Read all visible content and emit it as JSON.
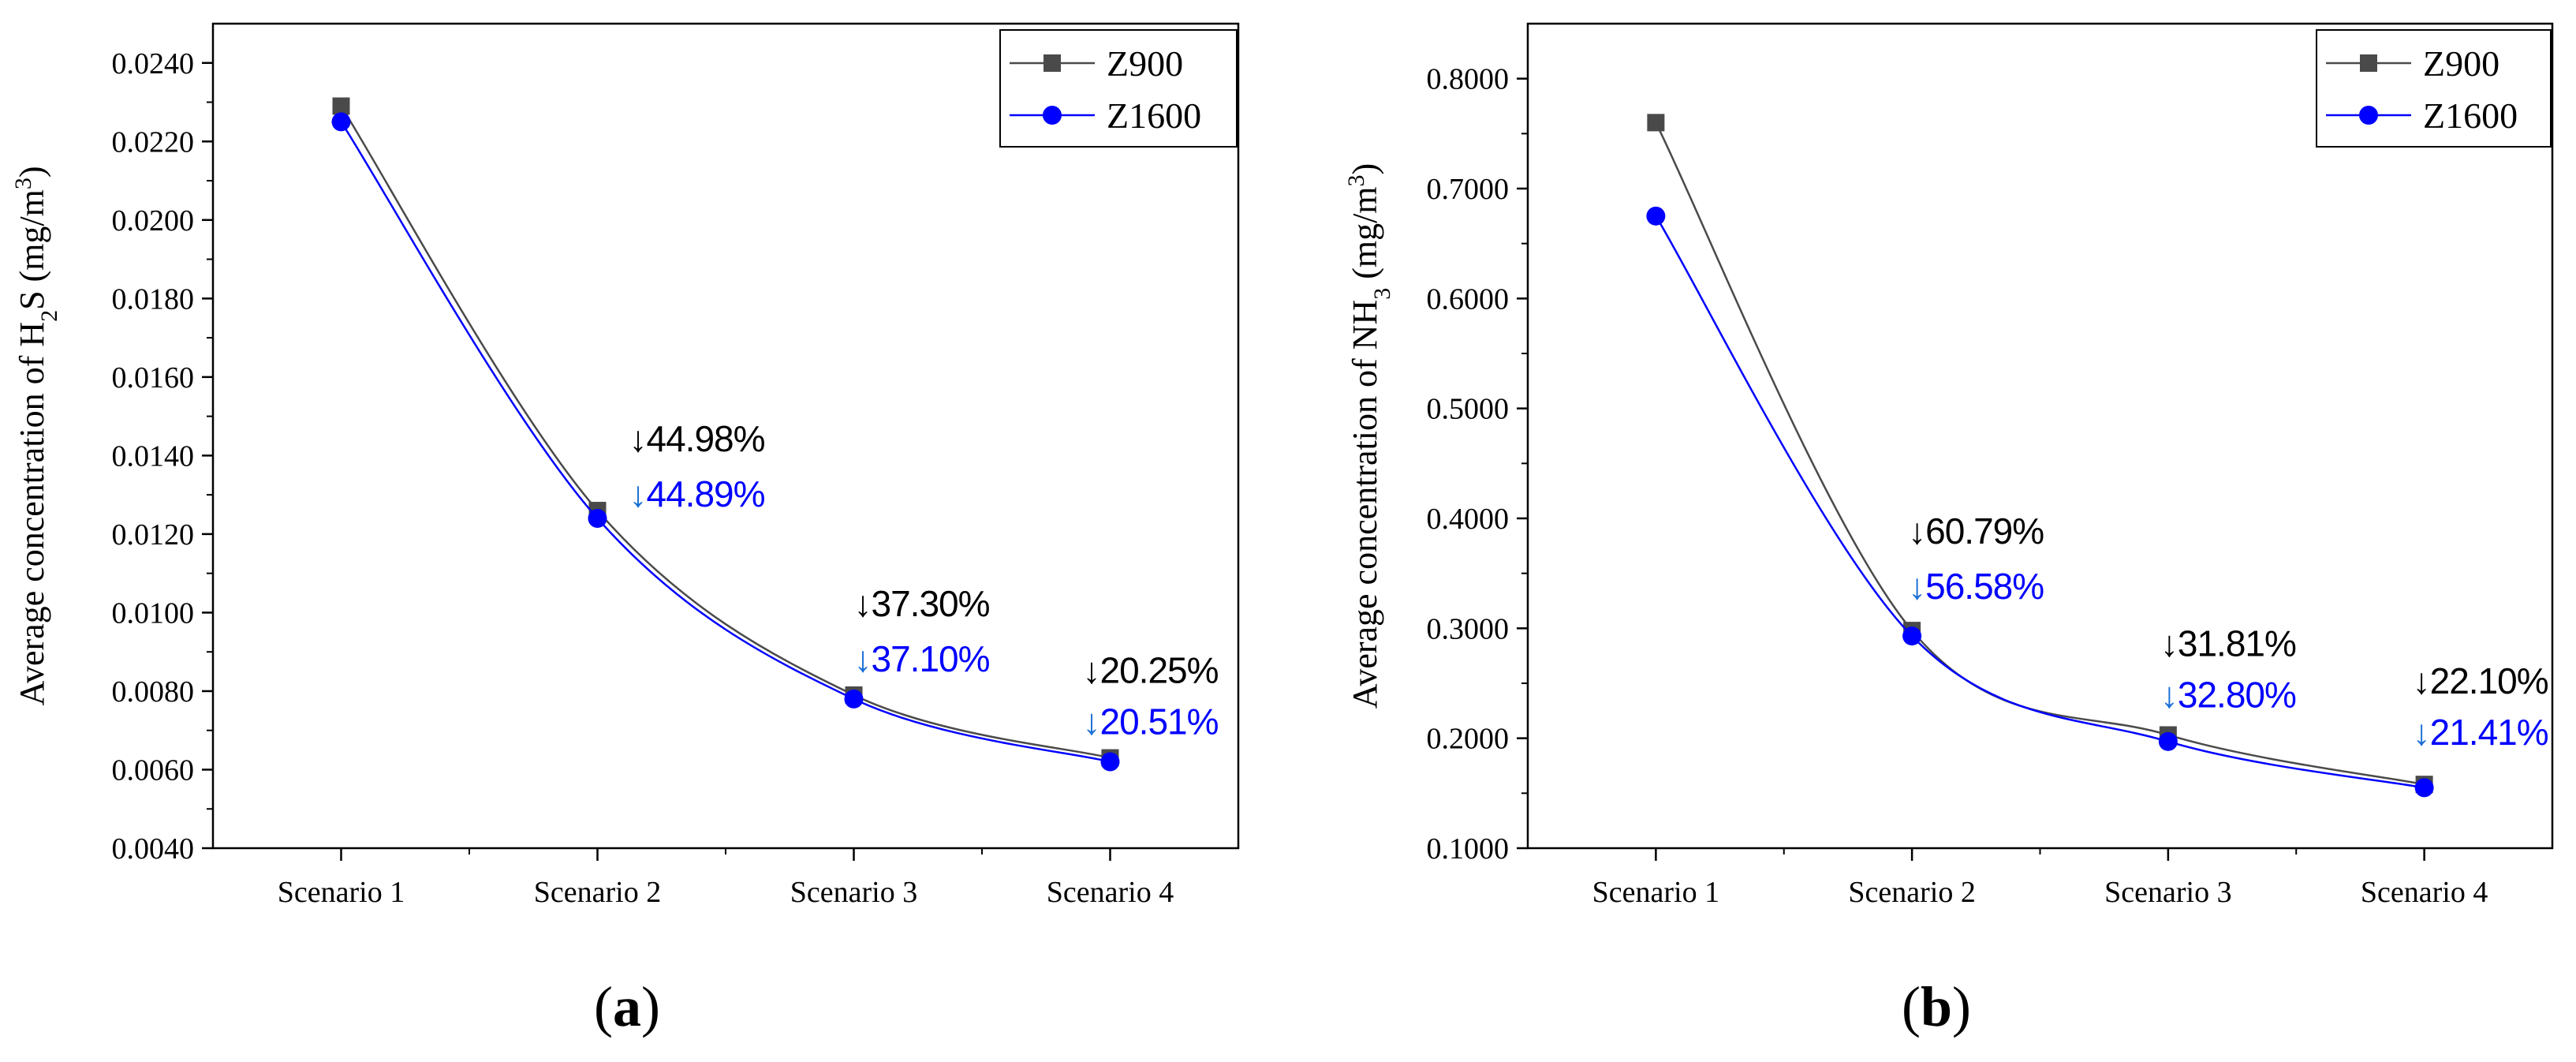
{
  "charts": [
    {
      "type": "line",
      "panel_label": "a",
      "title": "",
      "xlabel": "",
      "ylabel_parts": [
        "Average concentration of H",
        "2",
        "S (mg/m",
        "3",
        ")"
      ],
      "categories": [
        "Scenario 1",
        "Scenario 2",
        "Scenario 3",
        "Scenario 4"
      ],
      "ylim": [
        0.004,
        0.025
      ],
      "yticks": [
        0.004,
        0.006,
        0.008,
        0.01,
        0.012,
        0.014,
        0.016,
        0.018,
        0.02,
        0.022,
        0.024
      ],
      "ytick_labels": [
        "0.0040",
        "0.0060",
        "0.0080",
        "0.0100",
        "0.0120",
        "0.0140",
        "0.0160",
        "0.0180",
        "0.0200",
        "0.0220",
        "0.0240"
      ],
      "legend": [
        "Z900",
        "Z1600"
      ],
      "legend_position": "top-right",
      "series": [
        {
          "name": "Z900",
          "color": "#4a4a4a",
          "marker": "square",
          "values": [
            0.0229,
            0.0126,
            0.0079,
            0.0063
          ]
        },
        {
          "name": "Z1600",
          "color": "#0000ff",
          "marker": "circle",
          "values": [
            0.0225,
            0.0124,
            0.0078,
            0.0062
          ]
        }
      ],
      "annotations": [
        {
          "category": "Scenario 2",
          "z900_text": "44.98%",
          "z1600_text": "44.89%"
        },
        {
          "category": "Scenario 3",
          "z900_text": "37.30%",
          "z1600_text": "37.10%"
        },
        {
          "category": "Scenario 4",
          "z900_text": "20.25%",
          "z1600_text": "20.51%"
        }
      ]
    },
    {
      "type": "line",
      "panel_label": "b",
      "title": "",
      "xlabel": "",
      "ylabel_parts": [
        "Average concentration of NH",
        "3",
        " (mg/m",
        "3",
        ")"
      ],
      "categories": [
        "Scenario 1",
        "Scenario 2",
        "Scenario 3",
        "Scenario 4"
      ],
      "ylim": [
        0.1,
        0.85
      ],
      "yticks": [
        0.1,
        0.2,
        0.3,
        0.4,
        0.5,
        0.6,
        0.7,
        0.8
      ],
      "ytick_labels": [
        "0.1000",
        "0.2000",
        "0.3000",
        "0.4000",
        "0.5000",
        "0.6000",
        "0.7000",
        "0.8000"
      ],
      "legend": [
        "Z900",
        "Z1600"
      ],
      "legend_position": "top-right",
      "series": [
        {
          "name": "Z900",
          "color": "#4a4a4a",
          "marker": "square",
          "values": [
            0.76,
            0.298,
            0.203,
            0.158
          ]
        },
        {
          "name": "Z1600",
          "color": "#0000ff",
          "marker": "circle",
          "values": [
            0.675,
            0.293,
            0.197,
            0.155
          ]
        }
      ],
      "annotations": [
        {
          "category": "Scenario 2",
          "z900_text": "60.79%",
          "z1600_text": "56.58%"
        },
        {
          "category": "Scenario 3",
          "z900_text": "31.81%",
          "z1600_text": "32.80%"
        },
        {
          "category": "Scenario 4",
          "z900_text": "22.10%",
          "z1600_text": "21.41%"
        }
      ]
    }
  ],
  "colors": {
    "axis": "#000000",
    "z900": "#4a4a4a",
    "z1600": "#0000ff",
    "anno_black": "#000000",
    "anno_blue": "#0000ff",
    "anno_arrow_blue": "#1a6fd6"
  },
  "arrow_glyph": "↓"
}
